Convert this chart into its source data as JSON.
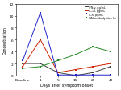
{
  "x_labels": [
    "Baseline",
    "1",
    "5",
    "15",
    "27",
    "49"
  ],
  "x_values": [
    0,
    1,
    2,
    3,
    4,
    5
  ],
  "ifn_gamma": [
    2.0,
    2.0,
    0.5,
    0.0,
    0.5,
    1.5
  ],
  "il10": [
    1.5,
    6.0,
    0.5,
    1.0,
    1.5,
    2.0
  ],
  "il6": [
    2.5,
    10.5,
    0.1,
    0.1,
    0.1,
    0.1
  ],
  "hai": [
    1.2,
    1.5,
    2.5,
    3.5,
    4.8,
    4.0
  ],
  "ifn_color": "#404040",
  "il10_color": "#cc2200",
  "il6_color": "#2222cc",
  "hai_color": "#228822",
  "ylabel": "Concentration",
  "xlabel": "Days after symptom onset",
  "ylim": [
    0,
    12
  ],
  "yticks": [
    0,
    2,
    4,
    6,
    8,
    10,
    12
  ],
  "legend_labels": [
    "•IFN-γ, pg/mL",
    "―IL-10, pg/mL",
    "―IL-6, pg/mL",
    "―HAI antibody titer, Ln"
  ],
  "legend_labels_clean": [
    "IFN-γ, pg/mL",
    "IL-10, pg/mL",
    "IL-6, pg/mL",
    "HAI antibody titer, Ln"
  ],
  "bg_color": "#ffffff"
}
